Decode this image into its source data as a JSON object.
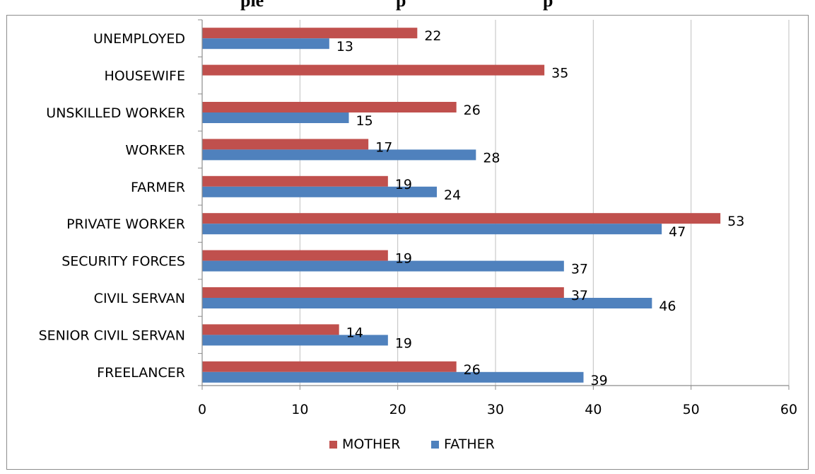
{
  "header_fragments": [
    "pie",
    "p",
    "p"
  ],
  "chart_data": {
    "type": "bar",
    "orientation": "horizontal",
    "title": "",
    "xlabel": "",
    "ylabel": "",
    "categories": [
      "UNEMPLOYED",
      "HOUSEWIFE",
      "UNSKILLED WORKER",
      "WORKER",
      "FARMER",
      "PRIVATE WORKER",
      "SECURITY FORCES",
      "CIVIL SERVAN",
      "SENIOR CIVIL SERVAN",
      "FREELANCER"
    ],
    "series": [
      {
        "name": "MOTHER",
        "color": "#c0504d",
        "values": [
          22,
          35,
          26,
          17,
          19,
          53,
          19,
          37,
          14,
          26
        ]
      },
      {
        "name": "FATHER",
        "color": "#4f81bd",
        "values": [
          13,
          null,
          15,
          28,
          24,
          47,
          37,
          46,
          19,
          39
        ]
      }
    ],
    "xlim": [
      0,
      60
    ],
    "xticks": [
      0,
      10,
      20,
      30,
      40,
      50,
      60
    ],
    "grid": "vertical",
    "legend": "bottom",
    "data_labels": true
  }
}
